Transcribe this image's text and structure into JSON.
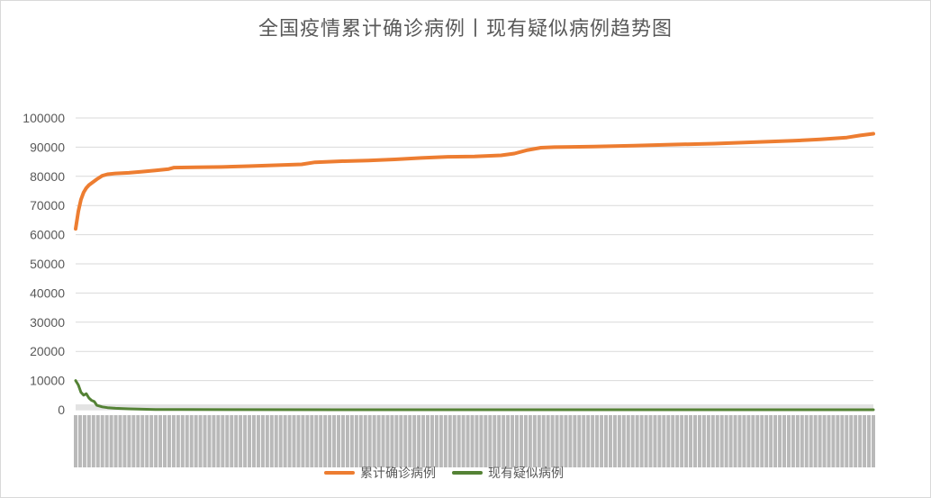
{
  "title": "全国疫情累计确诊病例丨现有疑似病例趋势图",
  "chart_data": {
    "type": "line",
    "title": "全国疫情累计确诊病例丨现有疑似病例趋势图",
    "ylim": [
      0,
      100000
    ],
    "yticks": [
      0,
      10000,
      20000,
      30000,
      40000,
      50000,
      60000,
      70000,
      80000,
      90000,
      100000
    ],
    "grid": true,
    "legend_position": "bottom",
    "n_points": 180,
    "series": [
      {
        "name": "累计确诊病例",
        "color": "#ed7d31",
        "points": [
          [
            0,
            62000
          ],
          [
            1,
            68000
          ],
          [
            2,
            72000
          ],
          [
            3,
            74500
          ],
          [
            4,
            76000
          ],
          [
            5,
            77000
          ],
          [
            8,
            79000
          ],
          [
            10,
            80200
          ],
          [
            12,
            80700
          ],
          [
            15,
            81000
          ],
          [
            20,
            81200
          ],
          [
            25,
            81600
          ],
          [
            30,
            82000
          ],
          [
            35,
            82500
          ],
          [
            37,
            83000
          ],
          [
            45,
            83100
          ],
          [
            55,
            83200
          ],
          [
            65,
            83500
          ],
          [
            75,
            83800
          ],
          [
            85,
            84100
          ],
          [
            90,
            84800
          ],
          [
            100,
            85200
          ],
          [
            110,
            85400
          ],
          [
            120,
            85800
          ],
          [
            130,
            86300
          ],
          [
            140,
            86700
          ],
          [
            150,
            86800
          ],
          [
            160,
            87200
          ],
          [
            165,
            87800
          ],
          [
            170,
            89000
          ],
          [
            175,
            89800
          ],
          [
            180,
            90000
          ],
          [
            195,
            90200
          ],
          [
            210,
            90500
          ],
          [
            225,
            90900
          ],
          [
            240,
            91200
          ],
          [
            255,
            91700
          ],
          [
            270,
            92200
          ],
          [
            280,
            92700
          ],
          [
            290,
            93300
          ],
          [
            295,
            94000
          ],
          [
            300,
            94600
          ]
        ]
      },
      {
        "name": "现有疑似病例",
        "color": "#548235",
        "points": [
          [
            0,
            10000
          ],
          [
            1,
            8500
          ],
          [
            2,
            6000
          ],
          [
            3,
            5000
          ],
          [
            4,
            5500
          ],
          [
            5,
            4000
          ],
          [
            6,
            3200
          ],
          [
            7,
            2800
          ],
          [
            8,
            1500
          ],
          [
            10,
            1000
          ],
          [
            12,
            700
          ],
          [
            15,
            500
          ],
          [
            20,
            300
          ],
          [
            25,
            200
          ],
          [
            30,
            100
          ],
          [
            40,
            50
          ],
          [
            60,
            20
          ],
          [
            100,
            10
          ],
          [
            200,
            5
          ],
          [
            300,
            5
          ]
        ]
      }
    ]
  }
}
